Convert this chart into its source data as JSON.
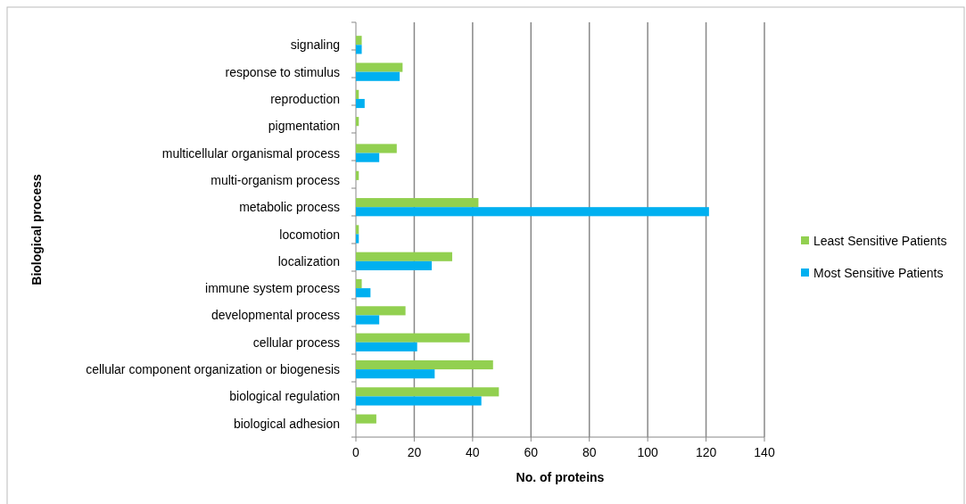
{
  "chart_data": {
    "type": "bar",
    "orientation": "horizontal",
    "xlabel": "No. of proteins",
    "ylabel": "Biological process",
    "categories": [
      "signaling",
      "response to stimulus",
      "reproduction",
      "pigmentation",
      "multicellular organismal process",
      "multi-organism process",
      "metabolic process",
      "locomotion",
      "localization",
      "immune system process",
      "developmental process",
      "cellular process",
      "cellular component organization or biogenesis",
      "biological regulation",
      "biological adhesion"
    ],
    "series": [
      {
        "name": "Least Sensitive Patients",
        "color": "#92d050",
        "values": [
          2,
          16,
          1,
          1,
          14,
          1,
          42,
          1,
          33,
          2,
          17,
          39,
          47,
          49,
          7
        ]
      },
      {
        "name": "Most Sensitive Patients",
        "color": "#00b0f0",
        "values": [
          2,
          15,
          3,
          0,
          8,
          0,
          121,
          1,
          26,
          5,
          8,
          21,
          27,
          43,
          0
        ]
      }
    ],
    "xlim": [
      0,
      140
    ],
    "xticks": [
      0,
      20,
      40,
      60,
      80,
      100,
      120,
      140
    ],
    "grid": "x",
    "legend": "right"
  }
}
